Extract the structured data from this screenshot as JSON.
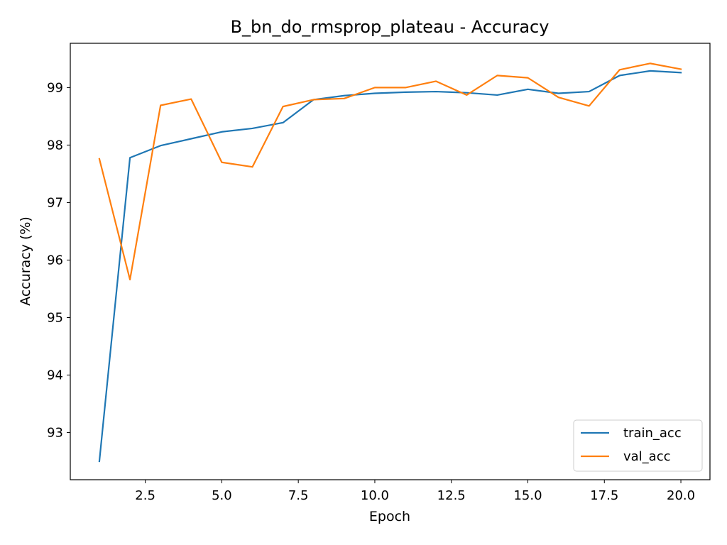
{
  "chart_data": {
    "type": "line",
    "title": "B_bn_do_rmsprop_plateau - Accuracy",
    "xlabel": "Epoch",
    "ylabel": "Accuracy (%)",
    "xlim": [
      0.05,
      20.95
    ],
    "ylim": [
      92.18,
      99.77
    ],
    "xticks": [
      2.5,
      5.0,
      7.5,
      10.0,
      12.5,
      15.0,
      17.5,
      20.0
    ],
    "xtick_labels": [
      "2.5",
      "5.0",
      "7.5",
      "10.0",
      "12.5",
      "15.0",
      "17.5",
      "20.0"
    ],
    "yticks": [
      93,
      94,
      95,
      96,
      97,
      98,
      99
    ],
    "ytick_labels": [
      "93",
      "94",
      "95",
      "96",
      "97",
      "98",
      "99"
    ],
    "grid": false,
    "legend_position": "lower-right",
    "x": [
      1,
      2,
      3,
      4,
      5,
      6,
      7,
      8,
      9,
      10,
      11,
      12,
      13,
      14,
      15,
      16,
      17,
      18,
      19,
      20
    ],
    "series": [
      {
        "name": "train_acc",
        "color": "#1f77b4",
        "values": [
          92.5,
          97.78,
          97.99,
          98.11,
          98.23,
          98.29,
          98.39,
          98.79,
          98.86,
          98.9,
          98.92,
          98.93,
          98.91,
          98.87,
          98.97,
          98.9,
          98.93,
          99.21,
          99.29,
          99.26
        ]
      },
      {
        "name": "val_acc",
        "color": "#ff7f0e",
        "values": [
          97.76,
          95.66,
          98.69,
          98.8,
          97.7,
          97.62,
          98.67,
          98.79,
          98.81,
          99.0,
          99.0,
          99.11,
          98.87,
          99.21,
          99.17,
          98.83,
          98.68,
          99.31,
          99.42,
          99.32
        ]
      }
    ]
  }
}
